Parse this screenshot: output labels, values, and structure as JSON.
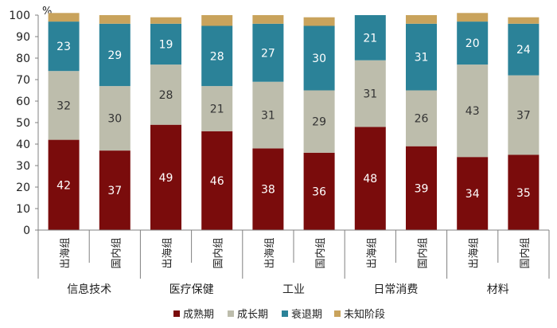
{
  "chart_data": {
    "type": "bar",
    "stacked": true,
    "y_unit": "%",
    "ylim": [
      0,
      100
    ],
    "y_ticks": [
      0,
      10,
      20,
      30,
      40,
      50,
      60,
      70,
      80,
      90,
      100
    ],
    "grid": false,
    "legend_position": "bottom",
    "groups": [
      {
        "label": "信息技术",
        "bars": [
          {
            "label": "出海组",
            "values": [
              42,
              32,
              23,
              4
            ]
          },
          {
            "label": "国内组",
            "values": [
              37,
              30,
              29,
              4
            ]
          }
        ]
      },
      {
        "label": "医疗保健",
        "bars": [
          {
            "label": "出海组",
            "values": [
              49,
              28,
              19,
              3
            ]
          },
          {
            "label": "国内组",
            "values": [
              46,
              21,
              28,
              5
            ]
          }
        ]
      },
      {
        "label": "工业",
        "bars": [
          {
            "label": "出海组",
            "values": [
              38,
              31,
              27,
              4
            ]
          },
          {
            "label": "国内组",
            "values": [
              36,
              29,
              30,
              4
            ]
          }
        ]
      },
      {
        "label": "日常消费",
        "bars": [
          {
            "label": "出海组",
            "values": [
              48,
              31,
              21,
              0
            ]
          },
          {
            "label": "国内组",
            "values": [
              39,
              26,
              31,
              4
            ]
          }
        ]
      },
      {
        "label": "材料",
        "bars": [
          {
            "label": "出海组",
            "values": [
              34,
              43,
              20,
              4
            ]
          },
          {
            "label": "国内组",
            "values": [
              35,
              37,
              24,
              3
            ]
          }
        ]
      }
    ],
    "series": [
      {
        "name": "成熟期",
        "color": "#7a0c0c",
        "label_color": "#ffffff"
      },
      {
        "name": "成长期",
        "color": "#bdbdac",
        "label_color": "#333333"
      },
      {
        "name": "衰退期",
        "color": "#2b8298",
        "label_color": "#ffffff"
      },
      {
        "name": "未知阶段",
        "color": "#c9a35c",
        "label_color": "#333333"
      }
    ]
  }
}
